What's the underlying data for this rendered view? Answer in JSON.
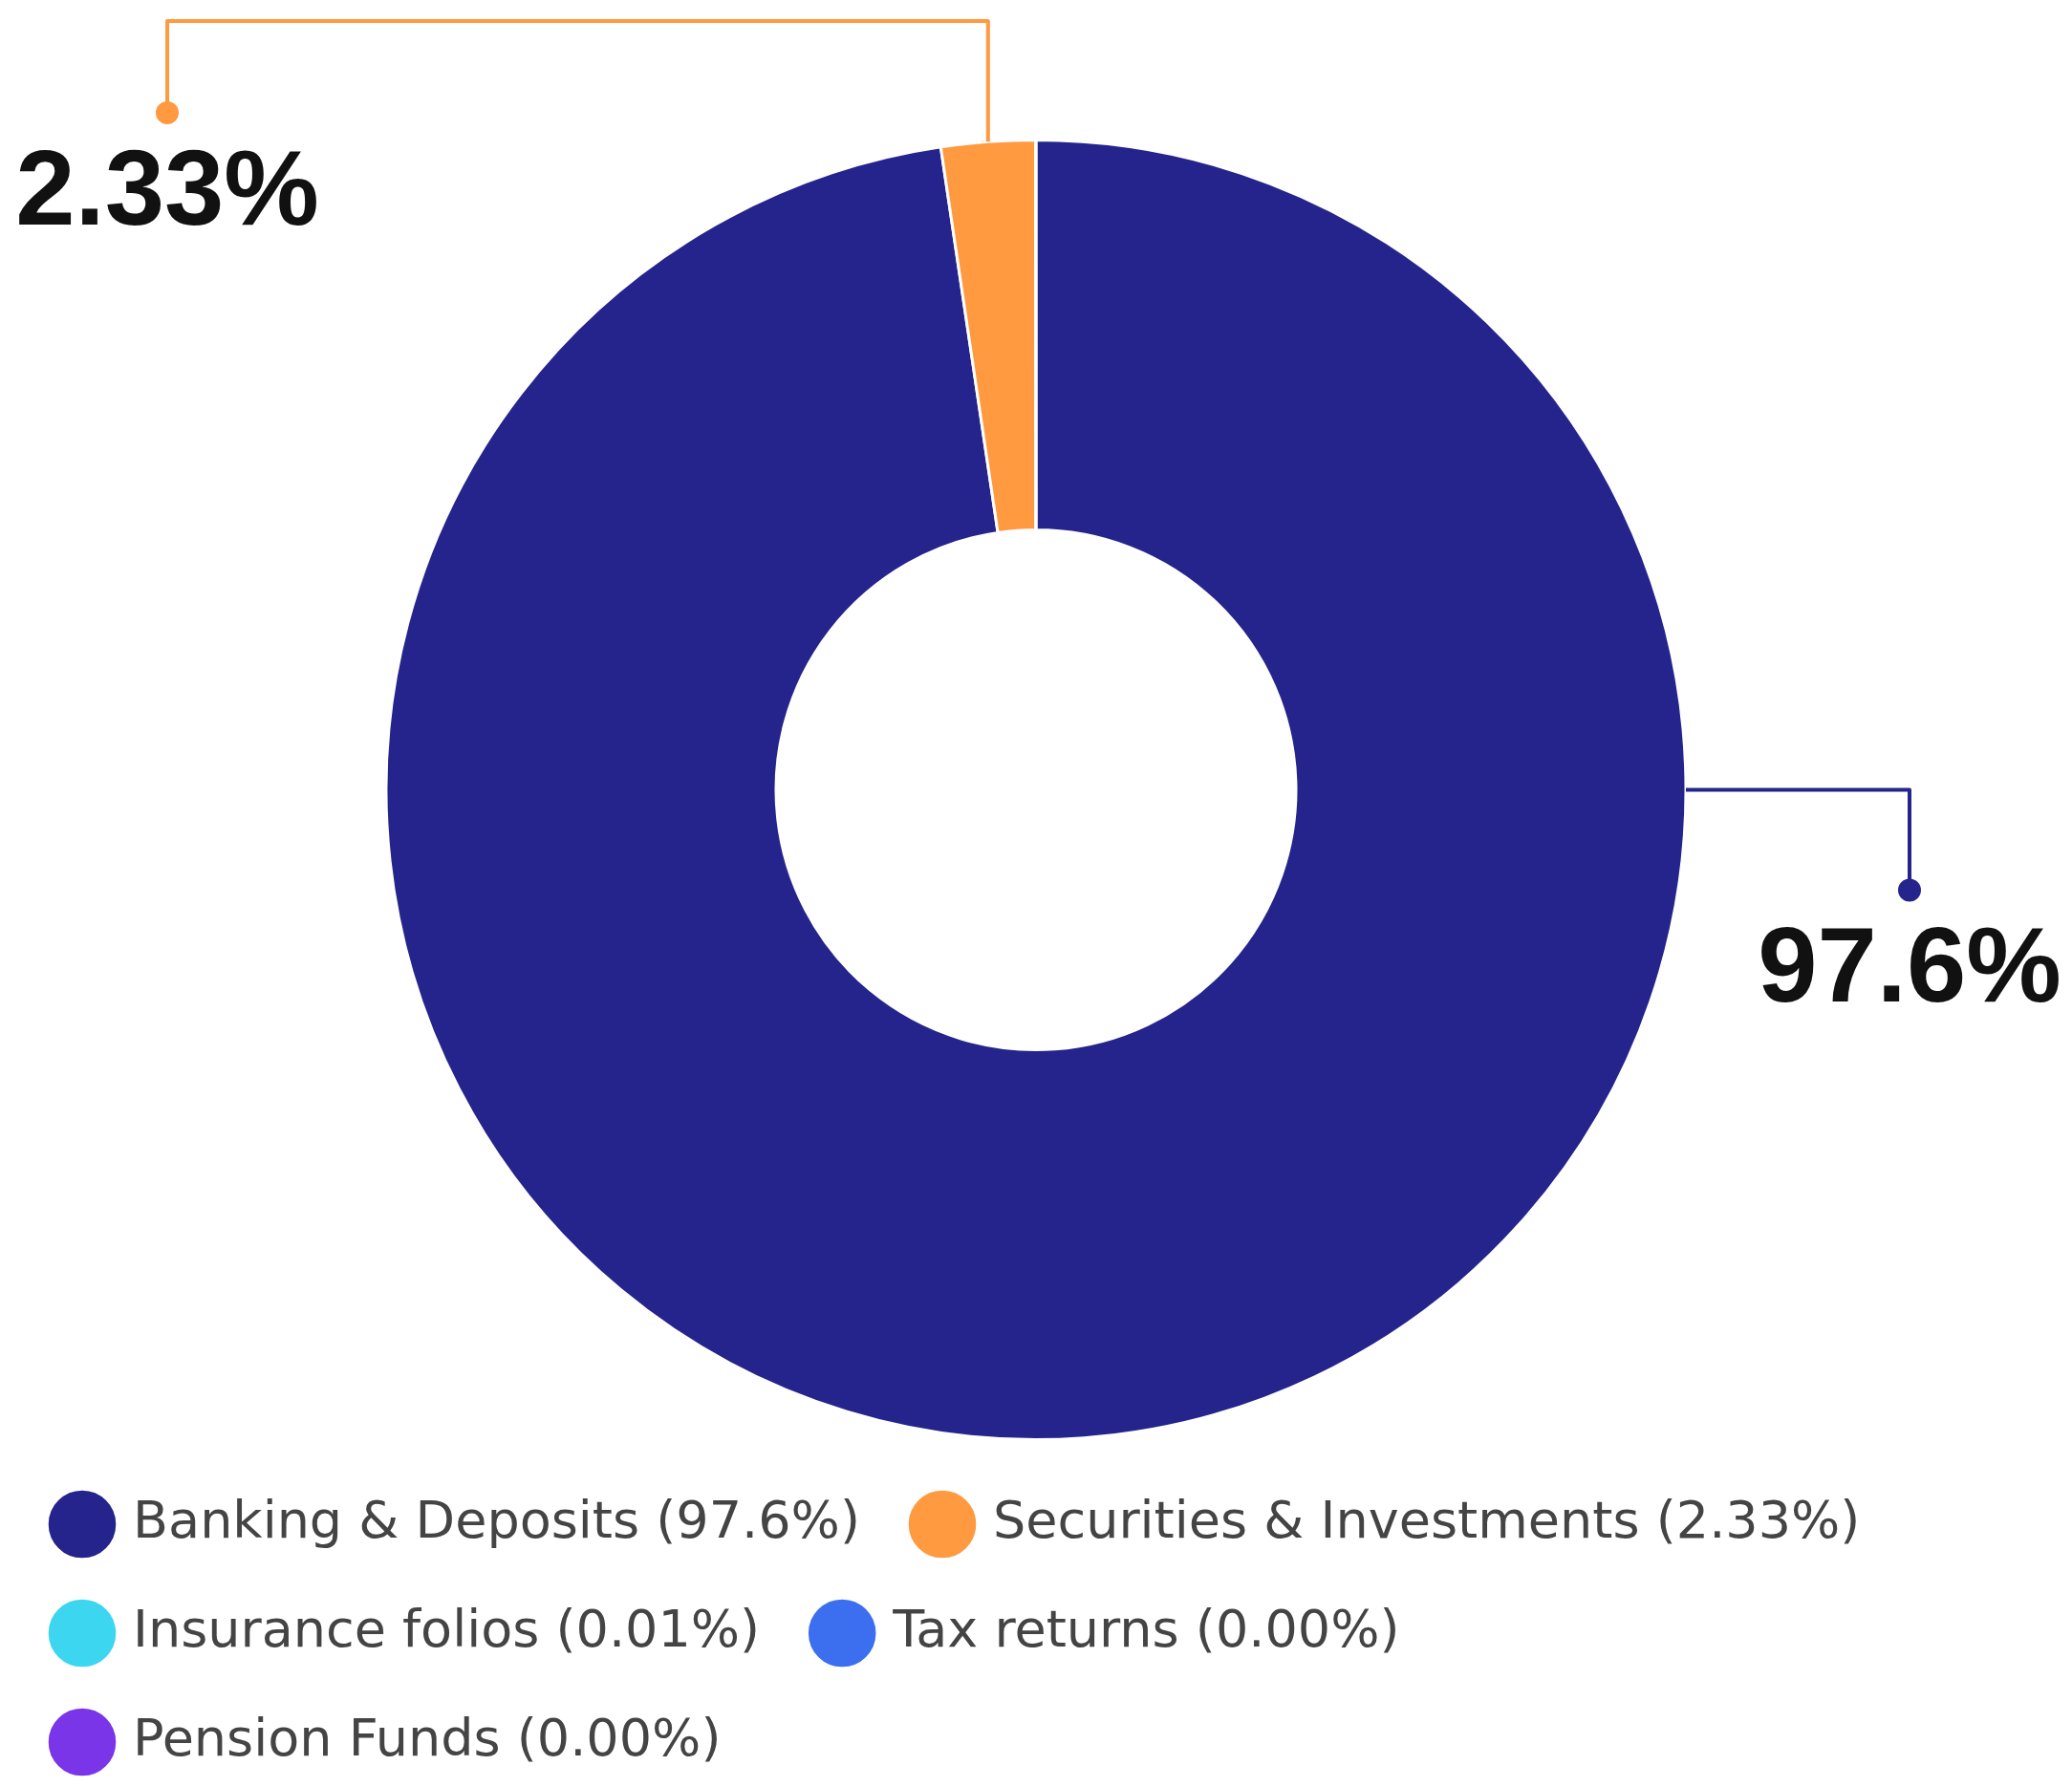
{
  "chart_data": {
    "type": "donut",
    "categories": [
      "Banking & Deposits (97.6%)",
      "Securities & Investments (2.33%)",
      "Insurance folios (0.01%)",
      "Tax returns (0.00%)",
      "Pension Funds (0.00%)"
    ],
    "values": [
      97.6,
      2.33,
      0.01,
      0,
      0
    ],
    "colors": [
      "#24248c",
      "#ff9a40",
      "#3dd6f0",
      "#3b6ff0",
      "#7b35e8"
    ],
    "value_labels": [
      "97.6%",
      "2.33%",
      null,
      null,
      null
    ],
    "legend": "bottom"
  }
}
